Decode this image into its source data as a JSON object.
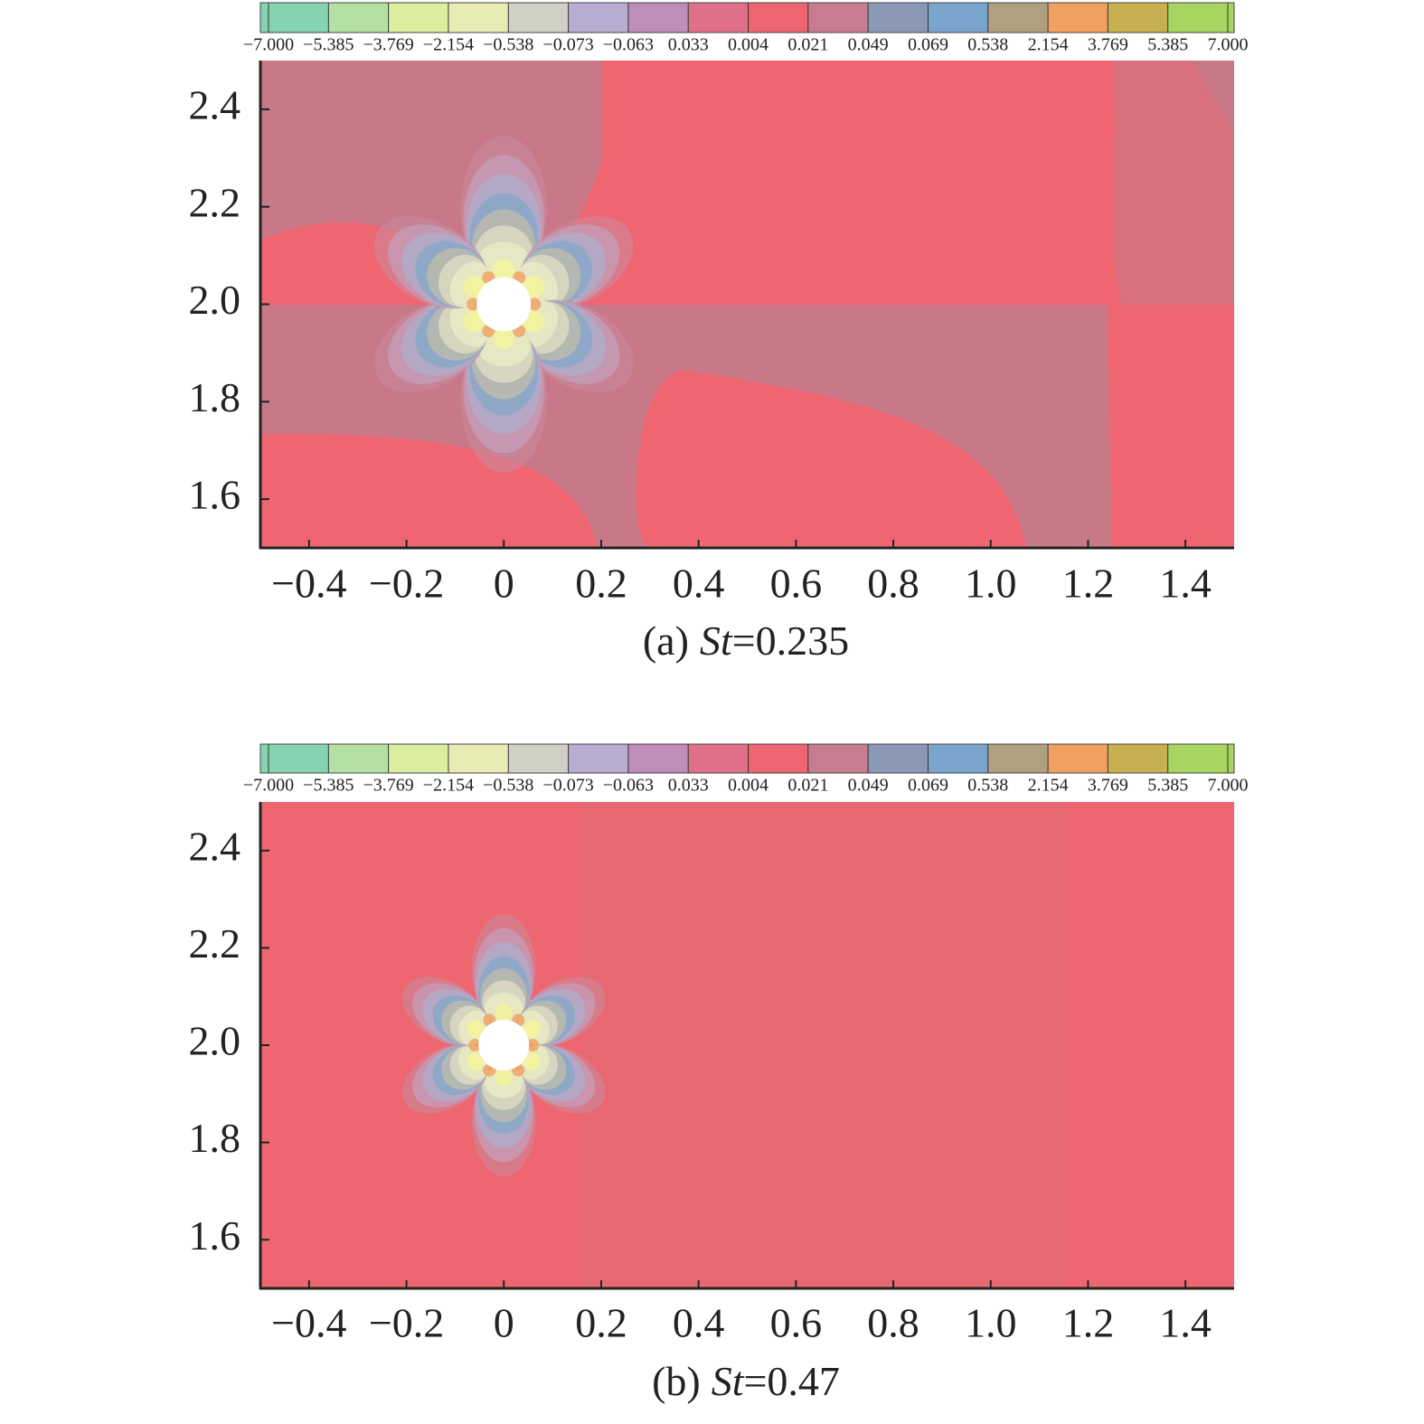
{
  "chart_data": [
    {
      "type": "contour",
      "colorbar": {
        "levels": [
          {
            "value": -7,
            "label": "−7.000"
          },
          {
            "value": -5.385,
            "label": "−5.385"
          },
          {
            "value": -3.769,
            "label": "−3.769"
          },
          {
            "value": -2.154,
            "label": "−2.154"
          },
          {
            "value": -0.538,
            "label": "−0.538"
          },
          {
            "value": -0.073,
            "label": "−0.073"
          },
          {
            "value": -0.063,
            "label": "−0.063"
          },
          0.033,
          0.004,
          0.021,
          0.049,
          0.069,
          0.538,
          2.154,
          3.769,
          5.385,
          {
            "value": 7,
            "label": "7.000"
          }
        ],
        "colors": [
          "#84d4b0",
          "#b4e0a4",
          "#dcee9e",
          "#e8ecb4",
          "#d0d0c4",
          "#b8acd0",
          "#c08cb8",
          "#e07088",
          "#ee6470",
          "#c87c90",
          "#8c98b8",
          "#7aa4cc",
          "#b0a080",
          "#f0a060",
          "#c8b050",
          "#a8d460"
        ]
      },
      "xlim": [
        -0.5,
        1.5
      ],
      "ylim": [
        1.5,
        2.5
      ],
      "xticks": [
        {
          "value": -0.4,
          "label": "−0.4"
        },
        {
          "value": -0.2,
          "label": "−0.2"
        },
        0,
        0.2,
        0.4,
        0.6,
        0.8,
        {
          "value": 1,
          "label": "1.0"
        },
        1.2,
        1.4
      ],
      "yticks": [
        1.6,
        1.8,
        {
          "value": 2,
          "label": "2.0"
        },
        2.2,
        2.4
      ],
      "subtitle_prefix": "(a)",
      "subtitle_italic": "St",
      "subtitle_suffix": "=0.235"
    },
    {
      "type": "contour",
      "colorbar": {
        "levels": [
          {
            "value": -7,
            "label": "−7.000"
          },
          {
            "value": -5.385,
            "label": "−5.385"
          },
          {
            "value": -3.769,
            "label": "−3.769"
          },
          {
            "value": -2.154,
            "label": "−2.154"
          },
          {
            "value": -0.538,
            "label": "−0.538"
          },
          {
            "value": -0.073,
            "label": "−0.073"
          },
          {
            "value": -0.063,
            "label": "−0.063"
          },
          0.033,
          0.004,
          0.021,
          0.049,
          0.069,
          0.538,
          2.154,
          3.769,
          5.385,
          {
            "value": 7,
            "label": "7.000"
          }
        ],
        "colors": [
          "#84d4b0",
          "#b4e0a4",
          "#dcee9e",
          "#e8ecb4",
          "#d0d0c4",
          "#b8acd0",
          "#c08cb8",
          "#e07088",
          "#ee6470",
          "#c87c90",
          "#8c98b8",
          "#7aa4cc",
          "#b0a080",
          "#f0a060",
          "#c8b050",
          "#a8d460"
        ]
      },
      "xlim": [
        -0.5,
        1.5
      ],
      "ylim": [
        1.5,
        2.5
      ],
      "xticks": [
        {
          "value": -0.4,
          "label": "−0.4"
        },
        {
          "value": -0.2,
          "label": "−0.2"
        },
        0,
        0.2,
        0.4,
        0.6,
        0.8,
        {
          "value": 1,
          "label": "1.0"
        },
        1.2,
        1.4
      ],
      "yticks": [
        1.6,
        1.8,
        {
          "value": 2,
          "label": "2.0"
        },
        2.2,
        2.4
      ],
      "subtitle_prefix": "(b)",
      "subtitle_italic": "St",
      "subtitle_suffix": "=0.47"
    }
  ]
}
